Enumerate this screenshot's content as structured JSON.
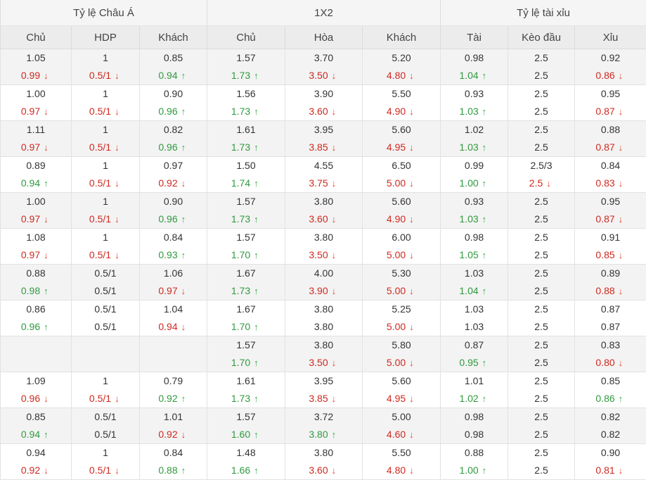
{
  "headers": {
    "groups": [
      "Tỷ lệ Châu Á",
      "1X2",
      "Tỷ lệ tài xỉu"
    ],
    "columns": [
      "Chủ",
      "HDP",
      "Khách",
      "Chủ",
      "Hòa",
      "Khách",
      "Tài",
      "Kèo đầu",
      "Xỉu"
    ]
  },
  "colors": {
    "down": "#d0281f",
    "up": "#2f9a3e",
    "header_bg": "#ececec",
    "alt_row_bg": "#f3f3f3"
  },
  "icons": {
    "up": "arrow-up-icon",
    "down": "arrow-down-icon"
  },
  "rows": [
    {
      "top": [
        "1.05",
        "1",
        "0.85",
        "1.57",
        "3.70",
        "5.20",
        "0.98",
        "2.5",
        "0.92"
      ],
      "bottom": [
        [
          "0.99",
          "down"
        ],
        [
          "0.5/1",
          "down"
        ],
        [
          "0.94",
          "up"
        ],
        [
          "1.73",
          "up"
        ],
        [
          "3.50",
          "down"
        ],
        [
          "4.80",
          "down"
        ],
        [
          "1.04",
          "up"
        ],
        [
          "2.5",
          ""
        ],
        [
          "0.86",
          "down"
        ]
      ]
    },
    {
      "top": [
        "1.00",
        "1",
        "0.90",
        "1.56",
        "3.90",
        "5.50",
        "0.93",
        "2.5",
        "0.95"
      ],
      "bottom": [
        [
          "0.97",
          "down"
        ],
        [
          "0.5/1",
          "down"
        ],
        [
          "0.96",
          "up"
        ],
        [
          "1.73",
          "up"
        ],
        [
          "3.60",
          "down"
        ],
        [
          "4.90",
          "down"
        ],
        [
          "1.03",
          "up"
        ],
        [
          "2.5",
          ""
        ],
        [
          "0.87",
          "down"
        ]
      ]
    },
    {
      "top": [
        "1.11",
        "1",
        "0.82",
        "1.61",
        "3.95",
        "5.60",
        "1.02",
        "2.5",
        "0.88"
      ],
      "bottom": [
        [
          "0.97",
          "down"
        ],
        [
          "0.5/1",
          "down"
        ],
        [
          "0.96",
          "up"
        ],
        [
          "1.73",
          "up"
        ],
        [
          "3.85",
          "down"
        ],
        [
          "4.95",
          "down"
        ],
        [
          "1.03",
          "up"
        ],
        [
          "2.5",
          ""
        ],
        [
          "0.87",
          "down"
        ]
      ]
    },
    {
      "top": [
        "0.89",
        "1",
        "0.97",
        "1.50",
        "4.55",
        "6.50",
        "0.99",
        "2.5/3",
        "0.84"
      ],
      "bottom": [
        [
          "0.94",
          "up"
        ],
        [
          "0.5/1",
          "down"
        ],
        [
          "0.92",
          "down"
        ],
        [
          "1.74",
          "up"
        ],
        [
          "3.75",
          "down"
        ],
        [
          "5.00",
          "down"
        ],
        [
          "1.00",
          "up"
        ],
        [
          "2.5",
          "down"
        ],
        [
          "0.83",
          "down"
        ]
      ]
    },
    {
      "top": [
        "1.00",
        "1",
        "0.90",
        "1.57",
        "3.80",
        "5.60",
        "0.93",
        "2.5",
        "0.95"
      ],
      "bottom": [
        [
          "0.97",
          "down"
        ],
        [
          "0.5/1",
          "down"
        ],
        [
          "0.96",
          "up"
        ],
        [
          "1.73",
          "up"
        ],
        [
          "3.60",
          "down"
        ],
        [
          "4.90",
          "down"
        ],
        [
          "1.03",
          "up"
        ],
        [
          "2.5",
          ""
        ],
        [
          "0.87",
          "down"
        ]
      ]
    },
    {
      "top": [
        "1.08",
        "1",
        "0.84",
        "1.57",
        "3.80",
        "6.00",
        "0.98",
        "2.5",
        "0.91"
      ],
      "bottom": [
        [
          "0.97",
          "down"
        ],
        [
          "0.5/1",
          "down"
        ],
        [
          "0.93",
          "up"
        ],
        [
          "1.70",
          "up"
        ],
        [
          "3.50",
          "down"
        ],
        [
          "5.00",
          "down"
        ],
        [
          "1.05",
          "up"
        ],
        [
          "2.5",
          ""
        ],
        [
          "0.85",
          "down"
        ]
      ]
    },
    {
      "top": [
        "0.88",
        "0.5/1",
        "1.06",
        "1.67",
        "4.00",
        "5.30",
        "1.03",
        "2.5",
        "0.89"
      ],
      "bottom": [
        [
          "0.98",
          "up"
        ],
        [
          "0.5/1",
          ""
        ],
        [
          "0.97",
          "down"
        ],
        [
          "1.73",
          "up"
        ],
        [
          "3.90",
          "down"
        ],
        [
          "5.00",
          "down"
        ],
        [
          "1.04",
          "up"
        ],
        [
          "2.5",
          ""
        ],
        [
          "0.88",
          "down"
        ]
      ]
    },
    {
      "top": [
        "0.86",
        "0.5/1",
        "1.04",
        "1.67",
        "3.80",
        "5.25",
        "1.03",
        "2.5",
        "0.87"
      ],
      "bottom": [
        [
          "0.96",
          "up"
        ],
        [
          "0.5/1",
          ""
        ],
        [
          "0.94",
          "down"
        ],
        [
          "1.70",
          "up"
        ],
        [
          "3.80",
          ""
        ],
        [
          "5.00",
          "down"
        ],
        [
          "1.03",
          ""
        ],
        [
          "2.5",
          ""
        ],
        [
          "0.87",
          ""
        ]
      ]
    },
    {
      "top": [
        "",
        "",
        "",
        "1.57",
        "3.80",
        "5.80",
        "0.87",
        "2.5",
        "0.83"
      ],
      "bottom": [
        [
          "",
          ""
        ],
        [
          "",
          ""
        ],
        [
          "",
          ""
        ],
        [
          "1.70",
          "up"
        ],
        [
          "3.50",
          "down"
        ],
        [
          "5.00",
          "down"
        ],
        [
          "0.95",
          "up"
        ],
        [
          "2.5",
          ""
        ],
        [
          "0.80",
          "down"
        ]
      ]
    },
    {
      "top": [
        "1.09",
        "1",
        "0.79",
        "1.61",
        "3.95",
        "5.60",
        "1.01",
        "2.5",
        "0.85"
      ],
      "bottom": [
        [
          "0.96",
          "down"
        ],
        [
          "0.5/1",
          "down"
        ],
        [
          "0.92",
          "up"
        ],
        [
          "1.73",
          "up"
        ],
        [
          "3.85",
          "down"
        ],
        [
          "4.95",
          "down"
        ],
        [
          "1.02",
          "up"
        ],
        [
          "2.5",
          ""
        ],
        [
          "0.86",
          "up"
        ]
      ]
    },
    {
      "top": [
        "0.85",
        "0.5/1",
        "1.01",
        "1.57",
        "3.72",
        "5.00",
        "0.98",
        "2.5",
        "0.82"
      ],
      "bottom": [
        [
          "0.94",
          "up"
        ],
        [
          "0.5/1",
          ""
        ],
        [
          "0.92",
          "down"
        ],
        [
          "1.60",
          "up"
        ],
        [
          "3.80",
          "up"
        ],
        [
          "4.60",
          "down"
        ],
        [
          "0.98",
          ""
        ],
        [
          "2.5",
          ""
        ],
        [
          "0.82",
          ""
        ]
      ]
    },
    {
      "top": [
        "0.94",
        "1",
        "0.84",
        "1.48",
        "3.80",
        "5.50",
        "0.88",
        "2.5",
        "0.90"
      ],
      "bottom": [
        [
          "0.92",
          "down"
        ],
        [
          "0.5/1",
          "down"
        ],
        [
          "0.88",
          "up"
        ],
        [
          "1.66",
          "up"
        ],
        [
          "3.60",
          "down"
        ],
        [
          "4.80",
          "down"
        ],
        [
          "1.00",
          "up"
        ],
        [
          "2.5",
          ""
        ],
        [
          "0.81",
          "down"
        ]
      ]
    }
  ]
}
